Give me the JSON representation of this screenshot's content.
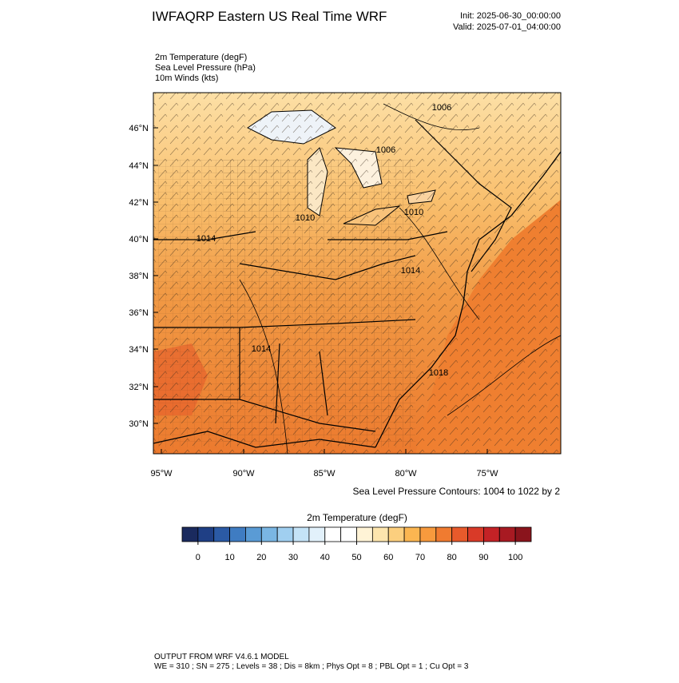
{
  "header": {
    "title": "IWFAQRP Eastern US Real Time WRF",
    "init": "Init: 2025-06-30_00:00:00",
    "valid": "Valid: 2025-07-01_04:00:00"
  },
  "fields": [
    "2m Temperature   (degF)",
    "Sea Level Pressure   (hPa)",
    "10m Winds   (kts)"
  ],
  "map": {
    "lat_labels": [
      "46°N",
      "44°N",
      "42°N",
      "40°N",
      "38°N",
      "36°N",
      "34°N",
      "32°N",
      "30°N"
    ],
    "lon_labels": [
      "95°W",
      "90°W",
      "85°W",
      "80°W",
      "75°W"
    ],
    "contour_labels": [
      "1006",
      "1006",
      "1010",
      "1010",
      "1014",
      "1014",
      "1014",
      "1018"
    ]
  },
  "contour_note": "Sea Level Pressure Contours: 1004 to 1022 by 2",
  "colorbar": {
    "title": "2m Temperature  (degF)",
    "ticks": [
      0,
      10,
      20,
      30,
      40,
      50,
      60,
      70,
      80,
      90,
      100
    ],
    "colors": [
      "#1a2a5e",
      "#1f3f85",
      "#2b5aa5",
      "#3f7cc2",
      "#5a9bd5",
      "#7ab6e3",
      "#a0cff0",
      "#c4e3f7",
      "#e2f1fb",
      "#ffffff",
      "#ffffff",
      "#fff3d6",
      "#fde5ae",
      "#fccf7e",
      "#fbb651",
      "#f79a3d",
      "#f07b30",
      "#e85a2b",
      "#d93a28",
      "#c42226",
      "#a81a22",
      "#8a141c"
    ]
  },
  "footer": {
    "model": "OUTPUT FROM WRF V4.6.1 MODEL",
    "settings": "WE = 310 ; SN = 275 ; Levels = 38 ; Dis = 8km ; Phys Opt = 8 ; PBL Opt = 1 ; Cu Opt = 3"
  }
}
